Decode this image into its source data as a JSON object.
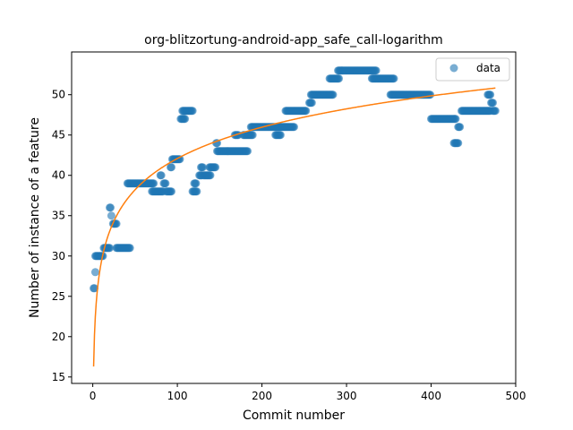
{
  "chart_data": {
    "type": "scatter",
    "title": "org-blitzortung-android-app_safe_call-logarithm",
    "xlabel": "Commit number",
    "ylabel": "Number of instance of a feature",
    "xlim": [
      -25,
      500
    ],
    "ylim": [
      14.2,
      55.3
    ],
    "xticks": [
      0,
      100,
      200,
      300,
      400,
      500
    ],
    "yticks": [
      15,
      20,
      25,
      30,
      35,
      40,
      45,
      50
    ],
    "grid": false,
    "legend": {
      "placement": "top-right",
      "entries": [
        "data"
      ]
    },
    "colors": {
      "data": "#1f77b4",
      "fit": "#ff7f0e"
    },
    "series": [
      {
        "name": "data",
        "kind": "scatter",
        "segments": [
          [
            1,
            2,
            26
          ],
          [
            3,
            3,
            28
          ],
          [
            3,
            4,
            30
          ],
          [
            5,
            12,
            30
          ],
          [
            13,
            20,
            31
          ],
          [
            20,
            21,
            36
          ],
          [
            22,
            22,
            35
          ],
          [
            24,
            28,
            34
          ],
          [
            28,
            44,
            31
          ],
          [
            41,
            72,
            39
          ],
          [
            70,
            83,
            38
          ],
          [
            80,
            81,
            40
          ],
          [
            84,
            86,
            39
          ],
          [
            87,
            93,
            38
          ],
          [
            92,
            93,
            41
          ],
          [
            94,
            103,
            42
          ],
          [
            104,
            109,
            47
          ],
          [
            106,
            118,
            48
          ],
          [
            118,
            123,
            38
          ],
          [
            120,
            122,
            39
          ],
          [
            126,
            129,
            40
          ],
          [
            128,
            130,
            41
          ],
          [
            131,
            139,
            40
          ],
          [
            138,
            145,
            41
          ],
          [
            146,
            147,
            44
          ],
          [
            147,
            175,
            43
          ],
          [
            168,
            172,
            45
          ],
          [
            176,
            183,
            43
          ],
          [
            178,
            189,
            45
          ],
          [
            187,
            238,
            46
          ],
          [
            216,
            222,
            45
          ],
          [
            228,
            252,
            48
          ],
          [
            256,
            259,
            49
          ],
          [
            258,
            284,
            50
          ],
          [
            280,
            291,
            52
          ],
          [
            290,
            335,
            53
          ],
          [
            330,
            356,
            52
          ],
          [
            352,
            399,
            50
          ],
          [
            400,
            429,
            47
          ],
          [
            427,
            432,
            44
          ],
          [
            432,
            434,
            46
          ],
          [
            436,
            470,
            48
          ],
          [
            467,
            470,
            50
          ],
          [
            471,
            473,
            49
          ],
          [
            473,
            476,
            48
          ]
        ]
      },
      {
        "name": "",
        "kind": "line",
        "model": "y = a + b*ln(x)",
        "a": 16.3,
        "b": 5.6,
        "x_range": [
          1,
          476
        ]
      }
    ]
  }
}
